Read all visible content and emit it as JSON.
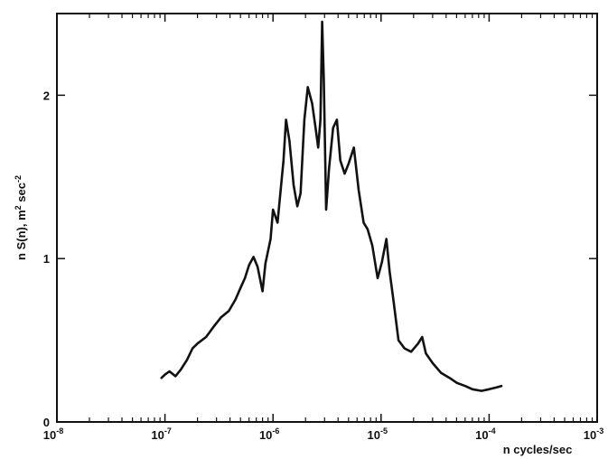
{
  "chart_data": {
    "type": "line",
    "title": "",
    "xlabel": "n cycles/sec",
    "ylabel_main": "n S(n), m",
    "ylabel_sup1": "2",
    "ylabel_mid": " sec",
    "ylabel_sup2": "-2",
    "x_scale": "log",
    "xlim": [
      1e-08,
      0.001
    ],
    "ylim": [
      0,
      2.5
    ],
    "grid": false,
    "line_color": "#111111",
    "x_ticks": [
      {
        "value": 1e-08,
        "base": "10",
        "exp": "-8"
      },
      {
        "value": 1e-07,
        "base": "10",
        "exp": "-7"
      },
      {
        "value": 1e-06,
        "base": "10",
        "exp": "-6"
      },
      {
        "value": 1e-05,
        "base": "10",
        "exp": "-5"
      },
      {
        "value": 0.0001,
        "base": "10",
        "exp": "-4"
      },
      {
        "value": 0.001,
        "base": "10",
        "exp": "-3"
      }
    ],
    "y_ticks": [
      {
        "value": 0,
        "label": "0"
      },
      {
        "value": 1,
        "label": "1"
      },
      {
        "value": 2,
        "label": "2"
      }
    ],
    "series": [
      {
        "x": [
          9.3e-08,
          1e-07,
          1.1e-07,
          1.25e-07,
          1.4e-07,
          1.6e-07,
          1.8e-07,
          2e-07,
          2.4e-07,
          2.8e-07,
          3.3e-07,
          3.9e-07,
          4.5e-07,
          5e-07,
          5.5e-07,
          6e-07,
          6.6e-07,
          7.2e-07,
          8e-07,
          8.5e-07,
          9.5e-07,
          1e-06,
          1.1e-06,
          1.25e-06,
          1.32e-06,
          1.42e-06,
          1.55e-06,
          1.68e-06,
          1.8e-06,
          1.95e-06,
          2.1e-06,
          2.3e-06,
          2.5e-06,
          2.62e-06,
          2.75e-06,
          2.85e-06,
          2.95e-06,
          3.1e-06,
          3.3e-06,
          3.6e-06,
          3.9e-06,
          4.2e-06,
          4.6e-06,
          5e-06,
          5.6e-06,
          6.2e-06,
          6.9e-06,
          7.5e-06,
          8.3e-06,
          9.3e-06,
          1.02e-05,
          1.12e-05,
          1.2e-05,
          1.3e-05,
          1.45e-05,
          1.65e-05,
          1.9e-05,
          2.2e-05,
          2.4e-05,
          2.6e-05,
          3e-05,
          3.6e-05,
          4.3e-05,
          5e-05,
          6e-05,
          7e-05,
          8.5e-05,
          0.0001,
          0.000115,
          0.00013
        ],
        "y": [
          0.27,
          0.29,
          0.31,
          0.28,
          0.32,
          0.38,
          0.45,
          0.48,
          0.52,
          0.58,
          0.64,
          0.68,
          0.75,
          0.82,
          0.88,
          0.96,
          1.01,
          0.95,
          0.8,
          0.97,
          1.12,
          1.3,
          1.22,
          1.6,
          1.85,
          1.72,
          1.45,
          1.32,
          1.4,
          1.85,
          2.05,
          1.95,
          1.78,
          1.68,
          1.85,
          2.45,
          2.1,
          1.3,
          1.55,
          1.8,
          1.85,
          1.6,
          1.52,
          1.58,
          1.68,
          1.42,
          1.22,
          1.18,
          1.08,
          0.88,
          0.98,
          1.12,
          0.92,
          0.75,
          0.5,
          0.45,
          0.43,
          0.48,
          0.52,
          0.42,
          0.36,
          0.3,
          0.27,
          0.24,
          0.22,
          0.2,
          0.19,
          0.2,
          0.21,
          0.22
        ]
      }
    ]
  }
}
